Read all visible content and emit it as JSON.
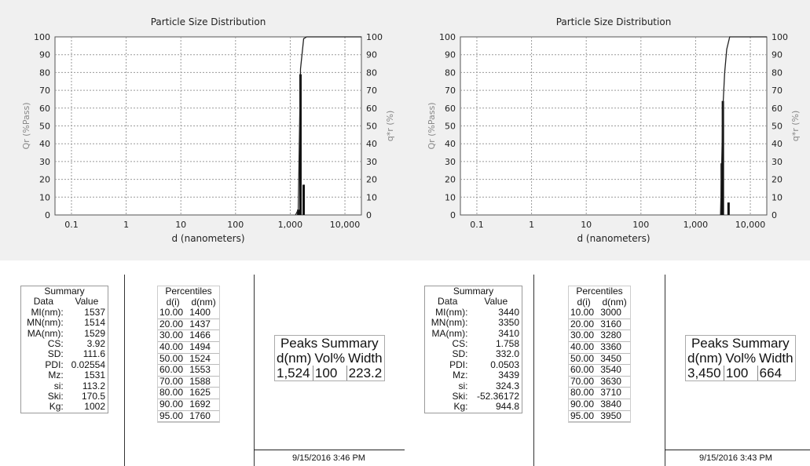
{
  "chart_data": [
    {
      "type": "bar",
      "title": "Particle Size Distribution",
      "xlabel": "d (nanometers)",
      "ylabel_left": "Qr (%Pass)",
      "ylabel_right": "q*r (%)",
      "x_scale": "log",
      "xlim": [
        0.05,
        20000
      ],
      "ylim": [
        0,
        100
      ],
      "x_tick_labels": [
        "0.1",
        "1",
        "10",
        "100",
        "1,000",
        "10,000"
      ],
      "y_tick_labels": [
        "0",
        "10",
        "20",
        "30",
        "40",
        "50",
        "60",
        "70",
        "80",
        "90",
        "100"
      ],
      "grid": true,
      "series": [
        {
          "name": "q*r (%)",
          "kind": "bar",
          "x": [
            1400,
            1540,
            1760
          ],
          "values": [
            3,
            79,
            17
          ]
        },
        {
          "name": "Qr (%Pass)",
          "kind": "line",
          "x": [
            1250,
            1400,
            1540,
            1760,
            2000,
            20000
          ],
          "values": [
            0,
            3,
            82,
            99,
            100,
            100
          ]
        }
      ]
    },
    {
      "type": "bar",
      "title": "Particle Size Distribution",
      "xlabel": "d (nanometers)",
      "ylabel_left": "Qr (%Pass)",
      "ylabel_right": "q*r (%)",
      "x_scale": "log",
      "xlim": [
        0.05,
        20000
      ],
      "ylim": [
        0,
        100
      ],
      "x_tick_labels": [
        "0.1",
        "1",
        "10",
        "100",
        "1,000",
        "10,000"
      ],
      "y_tick_labels": [
        "0",
        "10",
        "20",
        "30",
        "40",
        "50",
        "60",
        "70",
        "80",
        "90",
        "100"
      ],
      "grid": true,
      "series": [
        {
          "name": "q*r (%)",
          "kind": "bar",
          "x": [
            3000,
            3150,
            3550,
            4000
          ],
          "values": [
            29,
            64,
            0,
            7
          ]
        },
        {
          "name": "Qr (%Pass)",
          "kind": "line",
          "x": [
            2850,
            3000,
            3150,
            3400,
            3700,
            4200,
            20000
          ],
          "values": [
            0,
            29,
            60,
            80,
            93,
            100,
            100
          ]
        }
      ]
    }
  ],
  "panels": [
    {
      "summary": {
        "caption": "Summary",
        "col_data": "Data",
        "col_value": "Value",
        "rows": [
          {
            "k": "MI(nm):",
            "v": "1537"
          },
          {
            "k": "MN(nm):",
            "v": "1514"
          },
          {
            "k": "MA(nm):",
            "v": "1529"
          },
          {
            "k": "CS:",
            "v": "3.92"
          },
          {
            "k": "SD:",
            "v": "111.6"
          },
          {
            "k": "PDI:",
            "v": "0.02554"
          },
          {
            "k": "Mz:",
            "v": "1531"
          },
          {
            "k": "si:",
            "v": "113.2"
          },
          {
            "k": "Ski:",
            "v": "170.5"
          },
          {
            "k": "Kg:",
            "v": "1002"
          }
        ]
      },
      "percentiles": {
        "caption": "Percentiles",
        "col_di": "d(i)",
        "col_dnm": "d(nm)",
        "rows": [
          {
            "di": "10.00",
            "d": "1400"
          },
          {
            "di": "20.00",
            "d": "1437"
          },
          {
            "di": "30.00",
            "d": "1466"
          },
          {
            "di": "40.00",
            "d": "1494"
          },
          {
            "di": "50.00",
            "d": "1524"
          },
          {
            "di": "60.00",
            "d": "1553"
          },
          {
            "di": "70.00",
            "d": "1588"
          },
          {
            "di": "80.00",
            "d": "1625"
          },
          {
            "di": "90.00",
            "d": "1692"
          },
          {
            "di": "95.00",
            "d": "1760"
          }
        ]
      },
      "peaks": {
        "caption": "Peaks Summary",
        "col_dnm": "d(nm)",
        "col_vol": "Vol%",
        "col_width": "Width",
        "row": {
          "d": "1,524",
          "vol": "100",
          "width": "223.2"
        }
      },
      "timestamp": "9/15/2016 3:46 PM"
    },
    {
      "summary": {
        "caption": "Summary",
        "col_data": "Data",
        "col_value": "Value",
        "rows": [
          {
            "k": "MI(nm):",
            "v": "3440"
          },
          {
            "k": "MN(nm):",
            "v": "3350"
          },
          {
            "k": "MA(nm):",
            "v": "3410"
          },
          {
            "k": "CS:",
            "v": "1.758"
          },
          {
            "k": "SD:",
            "v": "332.0"
          },
          {
            "k": "PDI:",
            "v": "0.0503"
          },
          {
            "k": "Mz:",
            "v": "3439"
          },
          {
            "k": "si:",
            "v": "324.3"
          },
          {
            "k": "Ski:",
            "v": "-52.36172"
          },
          {
            "k": "Kg:",
            "v": "944.8"
          }
        ]
      },
      "percentiles": {
        "caption": "Percentiles",
        "col_di": "d(i)",
        "col_dnm": "d(nm)",
        "rows": [
          {
            "di": "10.00",
            "d": "3000"
          },
          {
            "di": "20.00",
            "d": "3160"
          },
          {
            "di": "30.00",
            "d": "3280"
          },
          {
            "di": "40.00",
            "d": "3360"
          },
          {
            "di": "50.00",
            "d": "3450"
          },
          {
            "di": "60.00",
            "d": "3540"
          },
          {
            "di": "70.00",
            "d": "3630"
          },
          {
            "di": "80.00",
            "d": "3710"
          },
          {
            "di": "90.00",
            "d": "3840"
          },
          {
            "di": "95.00",
            "d": "3950"
          }
        ]
      },
      "peaks": {
        "caption": "Peaks Summary",
        "col_dnm": "d(nm)",
        "col_vol": "Vol%",
        "col_width": "Width",
        "row": {
          "d": "3,450",
          "vol": "100",
          "width": "664"
        }
      },
      "timestamp": "9/15/2016 3:43 PM"
    }
  ]
}
